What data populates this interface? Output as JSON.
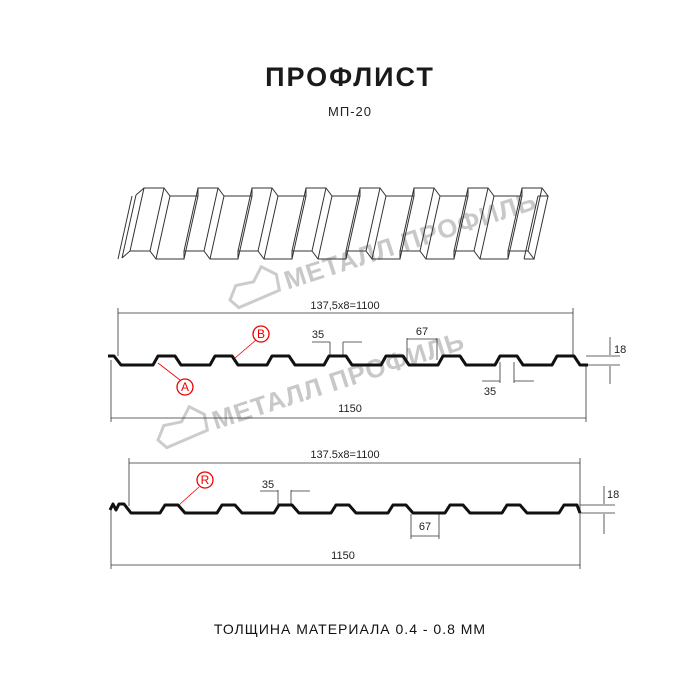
{
  "header": {
    "title": "ПРОФЛИСТ",
    "subtitle": "МП-20"
  },
  "watermark": {
    "text": "МЕТАЛЛ ПРОФИЛЬ",
    "color": "#c8c8c8"
  },
  "profile_a": {
    "pitch_label": "137,5x8=1100",
    "crest_width": "35",
    "valley_width": "67",
    "bottom_width": "35",
    "height": "18",
    "total_width": "1150",
    "markers": [
      "B",
      "A"
    ]
  },
  "profile_r": {
    "pitch_label": "137.5x8=1100",
    "crest_width": "35",
    "valley_width": "67",
    "height": "18",
    "total_width": "1150",
    "markers": [
      "R"
    ]
  },
  "footer": {
    "thickness": "ТОЛЩИНА МАТЕРИАЛА 0.4 - 0.8 ММ"
  },
  "colors": {
    "line": "#111111",
    "marker": "#e00000",
    "dimension": "#333333"
  }
}
